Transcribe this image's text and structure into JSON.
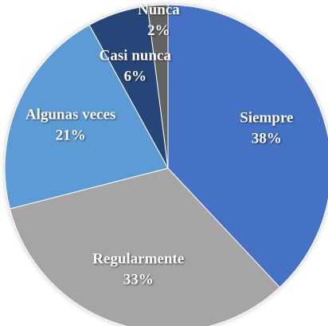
{
  "chart_data": {
    "type": "pie",
    "categories": [
      "Siempre",
      "Regularmente",
      "Algunas veces",
      "Casi nunca",
      "Nunca"
    ],
    "values": [
      38,
      33,
      21,
      6,
      2
    ],
    "value_labels": [
      "38%",
      "33%",
      "21%",
      "6%",
      "2%"
    ],
    "colors": [
      "#4472c4",
      "#a5a5a5",
      "#5b9bd5",
      "#264478",
      "#636363"
    ]
  }
}
